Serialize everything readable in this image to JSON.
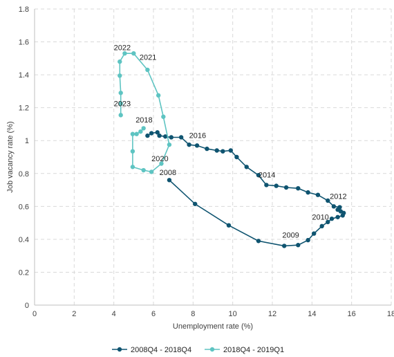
{
  "chart_data": {
    "type": "line",
    "xlabel": "Unemployment rate (%)",
    "ylabel": "Job vacancy rate (%)",
    "xlim": [
      0,
      18
    ],
    "ylim": [
      0,
      1.8
    ],
    "x_ticks": [
      "0",
      "2",
      "4",
      "6",
      "8",
      "10",
      "12",
      "14",
      "16",
      "18"
    ],
    "y_ticks": [
      "0",
      "0.2",
      "0.4",
      "0.6",
      "0.8",
      "1",
      "1.2",
      "1.4",
      "1.6",
      "1.8"
    ],
    "grid": "dashed",
    "legend_position": "bottom",
    "series": [
      {
        "name": "2008Q4 - 2018Q4",
        "color": "#0f5470",
        "points": [
          [
            6.8,
            0.76
          ],
          [
            8.1,
            0.615
          ],
          [
            9.8,
            0.485
          ],
          [
            11.3,
            0.39
          ],
          [
            12.6,
            0.36
          ],
          [
            13.3,
            0.365
          ],
          [
            13.8,
            0.395
          ],
          [
            14.1,
            0.435
          ],
          [
            14.5,
            0.48
          ],
          [
            14.8,
            0.505
          ],
          [
            15.0,
            0.525
          ],
          [
            15.3,
            0.535
          ],
          [
            15.55,
            0.545
          ],
          [
            15.6,
            0.56
          ],
          [
            15.45,
            0.57
          ],
          [
            15.3,
            0.58
          ],
          [
            15.4,
            0.595
          ],
          [
            15.1,
            0.6
          ],
          [
            14.8,
            0.635
          ],
          [
            14.3,
            0.67
          ],
          [
            13.8,
            0.685
          ],
          [
            13.3,
            0.71
          ],
          [
            12.7,
            0.715
          ],
          [
            12.2,
            0.725
          ],
          [
            11.7,
            0.73
          ],
          [
            11.3,
            0.79
          ],
          [
            10.7,
            0.84
          ],
          [
            10.2,
            0.9
          ],
          [
            9.9,
            0.94
          ],
          [
            9.5,
            0.935
          ],
          [
            9.2,
            0.94
          ],
          [
            8.7,
            0.95
          ],
          [
            8.2,
            0.97
          ],
          [
            7.8,
            0.975
          ],
          [
            7.4,
            1.02
          ],
          [
            6.9,
            1.02
          ],
          [
            6.6,
            1.025
          ],
          [
            6.3,
            1.03
          ],
          [
            6.2,
            1.05
          ],
          [
            5.9,
            1.045
          ],
          [
            5.7,
            1.03
          ]
        ]
      },
      {
        "name": "2018Q4 - 2019Q1",
        "color": "#5ec4c2",
        "points": [
          [
            5.5,
            1.075
          ],
          [
            5.35,
            1.055
          ],
          [
            5.15,
            1.04
          ],
          [
            4.95,
            1.04
          ],
          [
            4.95,
            0.935
          ],
          [
            4.95,
            0.84
          ],
          [
            5.5,
            0.82
          ],
          [
            5.9,
            0.81
          ],
          [
            6.4,
            0.86
          ],
          [
            6.8,
            0.975
          ],
          [
            6.5,
            1.145
          ],
          [
            6.25,
            1.275
          ],
          [
            5.7,
            1.43
          ],
          [
            5.0,
            1.53
          ],
          [
            4.55,
            1.53
          ],
          [
            4.3,
            1.48
          ],
          [
            4.3,
            1.395
          ],
          [
            4.35,
            1.29
          ],
          [
            4.35,
            1.225
          ],
          [
            4.35,
            1.155
          ]
        ]
      }
    ],
    "annotations": [
      {
        "text": "2022",
        "x": 4.0,
        "y": 1.55
      },
      {
        "text": "2021",
        "x": 5.3,
        "y": 1.49
      },
      {
        "text": "2023",
        "x": 4.0,
        "y": 1.21
      },
      {
        "text": "2018",
        "x": 5.1,
        "y": 1.11
      },
      {
        "text": "2016",
        "x": 7.8,
        "y": 1.015
      },
      {
        "text": "2020",
        "x": 5.9,
        "y": 0.875
      },
      {
        "text": "2008",
        "x": 6.3,
        "y": 0.79
      },
      {
        "text": "2014",
        "x": 11.3,
        "y": 0.775
      },
      {
        "text": "2012",
        "x": 14.9,
        "y": 0.645
      },
      {
        "text": "2010",
        "x": 14.0,
        "y": 0.52
      },
      {
        "text": "2009",
        "x": 12.5,
        "y": 0.41
      }
    ]
  }
}
